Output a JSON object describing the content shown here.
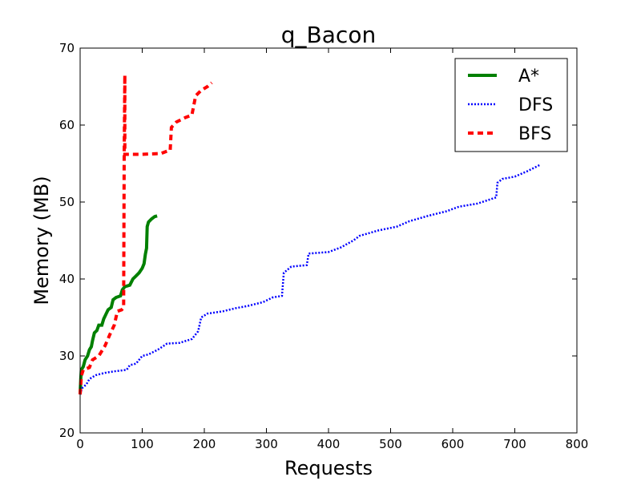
{
  "chart_data": {
    "type": "line",
    "title": "q_Bacon",
    "xlabel": "Requests",
    "ylabel": "Memory (MB)",
    "xlim": [
      0,
      800
    ],
    "ylim": [
      20,
      70
    ],
    "xticks": [
      "0",
      "100",
      "200",
      "300",
      "400",
      "500",
      "600",
      "700",
      "800"
    ],
    "yticks": [
      "20",
      "30",
      "40",
      "50",
      "60",
      "70"
    ],
    "grid": false,
    "legend": "top-right",
    "series": [
      {
        "name": "A*",
        "color": "#008000",
        "style": "solid",
        "points": [
          [
            0,
            25
          ],
          [
            1,
            27
          ],
          [
            2,
            28.2
          ],
          [
            5,
            28.6
          ],
          [
            8,
            29.5
          ],
          [
            12,
            30
          ],
          [
            15,
            30.8
          ],
          [
            18,
            31.2
          ],
          [
            20,
            32
          ],
          [
            23,
            33
          ],
          [
            27,
            33.3
          ],
          [
            30,
            34
          ],
          [
            35,
            34
          ],
          [
            38,
            34.8
          ],
          [
            42,
            35.5
          ],
          [
            45,
            36
          ],
          [
            50,
            36.3
          ],
          [
            53,
            37.3
          ],
          [
            58,
            37.6
          ],
          [
            65,
            37.8
          ],
          [
            68,
            38.6
          ],
          [
            72,
            39
          ],
          [
            80,
            39.2
          ],
          [
            85,
            40
          ],
          [
            90,
            40.4
          ],
          [
            95,
            40.8
          ],
          [
            100,
            41.4
          ],
          [
            103,
            42
          ],
          [
            105,
            43.2
          ],
          [
            107,
            44
          ],
          [
            108,
            46.8
          ],
          [
            110,
            47.4
          ],
          [
            115,
            47.8
          ],
          [
            120,
            48.1
          ],
          [
            124,
            48.2
          ]
        ]
      },
      {
        "name": "DFS",
        "color": "#0000ff",
        "style": "dotted",
        "points": [
          [
            0,
            25
          ],
          [
            3,
            25.8
          ],
          [
            10,
            26.3
          ],
          [
            15,
            27
          ],
          [
            25,
            27.5
          ],
          [
            40,
            27.8
          ],
          [
            55,
            28
          ],
          [
            75,
            28.2
          ],
          [
            80,
            28.8
          ],
          [
            90,
            29
          ],
          [
            100,
            30
          ],
          [
            110,
            30.2
          ],
          [
            125,
            30.8
          ],
          [
            140,
            31.6
          ],
          [
            160,
            31.7
          ],
          [
            180,
            32.2
          ],
          [
            190,
            33.2
          ],
          [
            195,
            35
          ],
          [
            205,
            35.5
          ],
          [
            230,
            35.8
          ],
          [
            250,
            36.2
          ],
          [
            270,
            36.5
          ],
          [
            295,
            37
          ],
          [
            310,
            37.6
          ],
          [
            325,
            37.8
          ],
          [
            328,
            40.8
          ],
          [
            340,
            41.6
          ],
          [
            365,
            41.8
          ],
          [
            368,
            43.3
          ],
          [
            400,
            43.5
          ],
          [
            420,
            44.1
          ],
          [
            440,
            45
          ],
          [
            450,
            45.6
          ],
          [
            480,
            46.3
          ],
          [
            510,
            46.8
          ],
          [
            530,
            47.5
          ],
          [
            560,
            48.2
          ],
          [
            590,
            48.8
          ],
          [
            610,
            49.4
          ],
          [
            640,
            49.8
          ],
          [
            670,
            50.6
          ],
          [
            672,
            52.5
          ],
          [
            680,
            53
          ],
          [
            700,
            53.3
          ],
          [
            720,
            54
          ],
          [
            740,
            54.8
          ]
        ]
      },
      {
        "name": "BFS",
        "color": "#ff0000",
        "style": "dashed",
        "points": [
          [
            0,
            25
          ],
          [
            2,
            27.4
          ],
          [
            5,
            28.2
          ],
          [
            15,
            28.5
          ],
          [
            20,
            29.5
          ],
          [
            30,
            30
          ],
          [
            40,
            31.3
          ],
          [
            48,
            32.8
          ],
          [
            55,
            34
          ],
          [
            60,
            35.8
          ],
          [
            67,
            36
          ],
          [
            70,
            36.3
          ],
          [
            71,
            56.2
          ],
          [
            72,
            66.5
          ],
          [
            72,
            56.2
          ],
          [
            100,
            56.2
          ],
          [
            130,
            56.3
          ],
          [
            140,
            56.6
          ],
          [
            145,
            56.7
          ],
          [
            147,
            59.7
          ],
          [
            155,
            60.4
          ],
          [
            170,
            61
          ],
          [
            180,
            61.3
          ],
          [
            186,
            63.8
          ],
          [
            195,
            64.5
          ],
          [
            205,
            65
          ],
          [
            212,
            65.5
          ]
        ]
      }
    ]
  }
}
